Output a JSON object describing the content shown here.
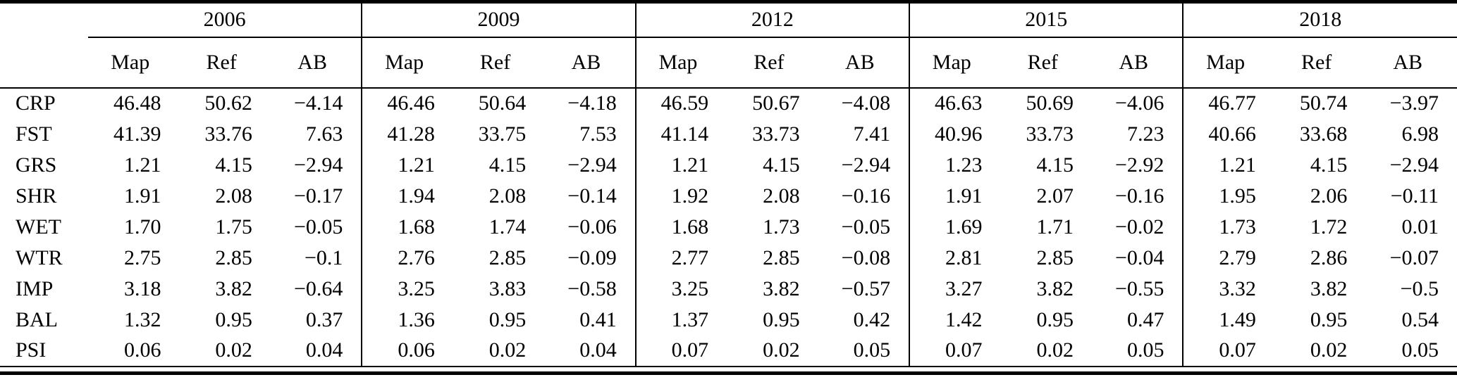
{
  "table": {
    "years": [
      "2006",
      "2009",
      "2012",
      "2015",
      "2018"
    ],
    "sub_headers": [
      "Map",
      "Ref",
      "AB"
    ],
    "rows": [
      {
        "label": "CRP",
        "values": [
          "46.48",
          "50.62",
          "−4.14",
          "46.46",
          "50.64",
          "−4.18",
          "46.59",
          "50.67",
          "−4.08",
          "46.63",
          "50.69",
          "−4.06",
          "46.77",
          "50.74",
          "−3.97"
        ]
      },
      {
        "label": "FST",
        "values": [
          "41.39",
          "33.76",
          "7.63",
          "41.28",
          "33.75",
          "7.53",
          "41.14",
          "33.73",
          "7.41",
          "40.96",
          "33.73",
          "7.23",
          "40.66",
          "33.68",
          "6.98"
        ]
      },
      {
        "label": "GRS",
        "values": [
          "1.21",
          "4.15",
          "−2.94",
          "1.21",
          "4.15",
          "−2.94",
          "1.21",
          "4.15",
          "−2.94",
          "1.23",
          "4.15",
          "−2.92",
          "1.21",
          "4.15",
          "−2.94"
        ]
      },
      {
        "label": "SHR",
        "values": [
          "1.91",
          "2.08",
          "−0.17",
          "1.94",
          "2.08",
          "−0.14",
          "1.92",
          "2.08",
          "−0.16",
          "1.91",
          "2.07",
          "−0.16",
          "1.95",
          "2.06",
          "−0.11"
        ]
      },
      {
        "label": "WET",
        "values": [
          "1.70",
          "1.75",
          "−0.05",
          "1.68",
          "1.74",
          "−0.06",
          "1.68",
          "1.73",
          "−0.05",
          "1.69",
          "1.71",
          "−0.02",
          "1.73",
          "1.72",
          "0.01"
        ]
      },
      {
        "label": "WTR",
        "values": [
          "2.75",
          "2.85",
          "−0.1",
          "2.76",
          "2.85",
          "−0.09",
          "2.77",
          "2.85",
          "−0.08",
          "2.81",
          "2.85",
          "−0.04",
          "2.79",
          "2.86",
          "−0.07"
        ]
      },
      {
        "label": "IMP",
        "values": [
          "3.18",
          "3.82",
          "−0.64",
          "3.25",
          "3.83",
          "−0.58",
          "3.25",
          "3.82",
          "−0.57",
          "3.27",
          "3.82",
          "−0.55",
          "3.32",
          "3.82",
          "−0.5"
        ]
      },
      {
        "label": "BAL",
        "values": [
          "1.32",
          "0.95",
          "0.37",
          "1.36",
          "0.95",
          "0.41",
          "1.37",
          "0.95",
          "0.42",
          "1.42",
          "0.95",
          "0.47",
          "1.49",
          "0.95",
          "0.54"
        ]
      },
      {
        "label": "PSI",
        "values": [
          "0.06",
          "0.02",
          "0.04",
          "0.06",
          "0.02",
          "0.04",
          "0.07",
          "0.02",
          "0.05",
          "0.07",
          "0.02",
          "0.05",
          "0.07",
          "0.02",
          "0.05"
        ]
      }
    ]
  }
}
